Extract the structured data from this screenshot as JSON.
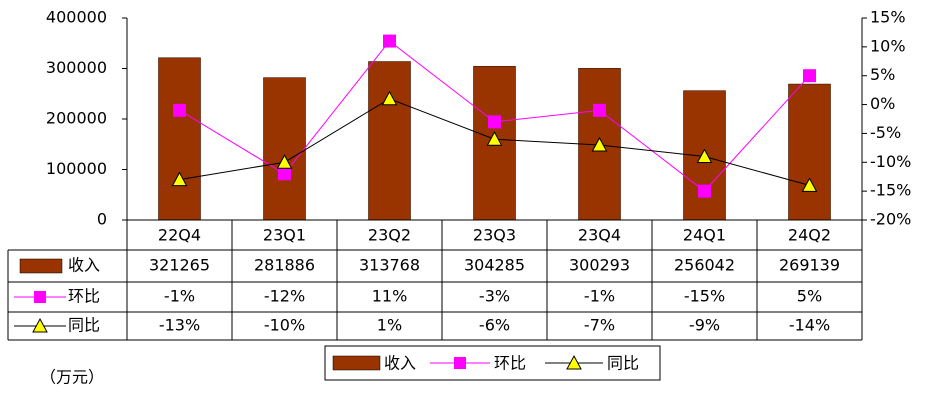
{
  "chart_data": {
    "type": "bar",
    "categories": [
      "22Q4",
      "23Q1",
      "23Q2",
      "23Q3",
      "23Q4",
      "24Q1",
      "24Q2"
    ],
    "series": [
      {
        "name": "收入",
        "type": "bar",
        "color": "#993300",
        "values": [
          321265,
          281886,
          313768,
          304285,
          300293,
          256042,
          269139
        ]
      },
      {
        "name": "环比",
        "type": "line",
        "axis": "y2",
        "color": "#FF00FF",
        "marker": "square",
        "marker_color": "#FF00FF",
        "values": [
          -1,
          -12,
          11,
          -3,
          -1,
          -15,
          5
        ],
        "value_labels": [
          "-1%",
          "-12%",
          "11%",
          "-3%",
          "-1%",
          "-15%",
          "5%"
        ]
      },
      {
        "name": "同比",
        "type": "line",
        "axis": "y2",
        "color": "#000000",
        "marker": "triangle",
        "marker_color": "#FFFF00",
        "values": [
          -13,
          -10,
          1,
          -6,
          -7,
          -9,
          -14
        ],
        "value_labels": [
          "-13%",
          "-10%",
          "1%",
          "-6%",
          "-7%",
          "-9%",
          "-14%"
        ]
      }
    ],
    "ylim": [
      0,
      400000
    ],
    "yticks": [
      0,
      100000,
      200000,
      300000,
      400000
    ],
    "y2lim": [
      -20,
      15
    ],
    "y2ticks": [
      {
        "value": 15,
        "label": "15%"
      },
      {
        "value": 10,
        "label": "10%"
      },
      {
        "value": 5,
        "label": "5%"
      },
      {
        "value": 0,
        "label": "0%"
      },
      {
        "value": -5,
        "label": "-5%"
      },
      {
        "value": -10,
        "label": "-10%"
      },
      {
        "value": -15,
        "label": "-15%"
      },
      {
        "value": -20,
        "label": "-20%"
      }
    ],
    "unit_label": "（万元）",
    "legend": "bottom",
    "data_table": true
  }
}
